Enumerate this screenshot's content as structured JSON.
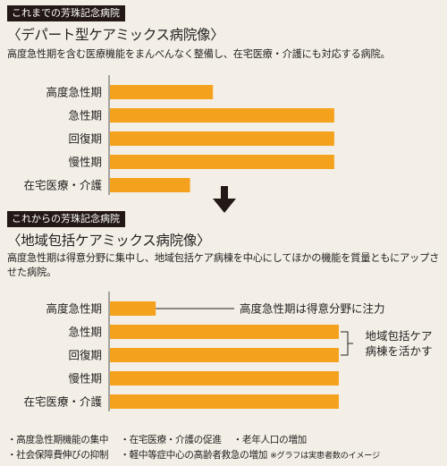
{
  "section_before": {
    "tag": "これまでの芳珠記念病院",
    "title": "〈デパート型ケアミックス病院像〉",
    "description": "高度急性期を含む医療機能をまんべんなく整備し、在宅医療・介護にも対応する病院。"
  },
  "section_after": {
    "tag": "これからの芳珠記念病院",
    "title": "〈地域包括ケアミックス病院像〉",
    "description": "高度急性期は得意分野に集中し、地域包括ケア病棟を中心にしてほかの機能を質量ともにアップさせた病院。",
    "annotations": {
      "acute": "高度急性期は得意分野に注力",
      "community_line1": "地域包括ケア",
      "community_line2": "病棟を活かす"
    }
  },
  "notes": {
    "line1": [
      "・高度急性期機能の集中",
      "・在宅医療・介護の促進",
      "・老年人口の増加"
    ],
    "line2": [
      "・社会保障費伸びの抑制",
      "・軽中等症中心の高齢者救急の増加"
    ],
    "footnote": "※グラフは実患者数のイメージ"
  },
  "chart_data": [
    {
      "type": "bar",
      "orientation": "horizontal",
      "categories": [
        "高度急性期",
        "急性期",
        "回復期",
        "慢性期",
        "在宅医療・介護"
      ],
      "values": [
        45,
        98,
        98,
        98,
        35
      ],
      "xlim": [
        0,
        100
      ],
      "color": "#f4a21e"
    },
    {
      "type": "bar",
      "orientation": "horizontal",
      "categories": [
        "高度急性期",
        "急性期",
        "回復期",
        "慢性期",
        "在宅医療・介護"
      ],
      "values": [
        20,
        100,
        100,
        100,
        100
      ],
      "xlim": [
        0,
        100
      ],
      "color": "#f4a21e"
    }
  ],
  "colors": {
    "bar": "#f4a21e",
    "tag_bg": "#231815",
    "background": "#f4efe6",
    "arrow": "#231815"
  }
}
